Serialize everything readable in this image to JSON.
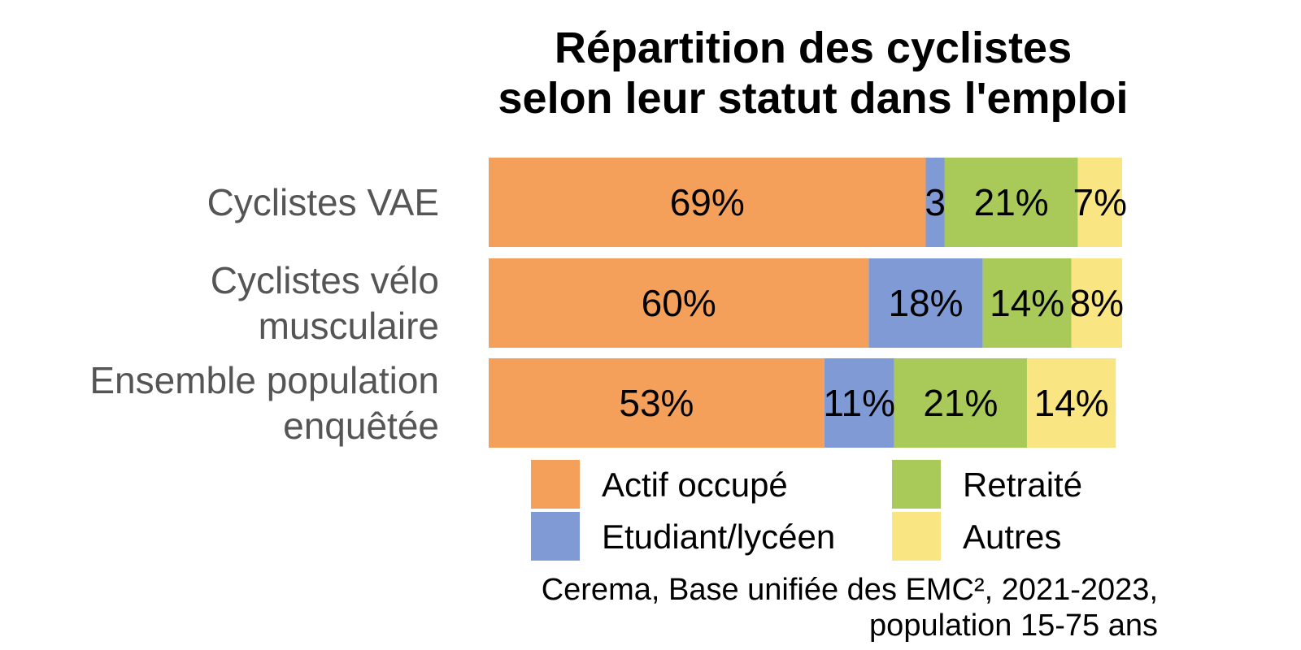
{
  "chart_data": {
    "type": "bar",
    "orientation": "horizontal",
    "stacked": true,
    "title_lines": [
      "Répartition des cyclistes",
      "selon leur statut dans l'emploi"
    ],
    "categories": [
      [
        "Cyclistes VAE"
      ],
      [
        "Cyclistes vélo",
        "musculaire"
      ],
      [
        "Ensemble population",
        "enquêtée"
      ]
    ],
    "series": [
      {
        "name": "Actif occupé",
        "color": "#F4A05A",
        "values": [
          69,
          60,
          53
        ],
        "labels": [
          "69%",
          "60%",
          "53%"
        ]
      },
      {
        "name": "Etudiant/lycéen",
        "color": "#7F9AD4",
        "values": [
          3,
          18,
          11
        ],
        "labels": [
          "3",
          "18%",
          "11%"
        ]
      },
      {
        "name": "Retraité",
        "color": "#A9CA58",
        "values": [
          21,
          14,
          21
        ],
        "labels": [
          "21%",
          "14%",
          "21%"
        ]
      },
      {
        "name": "Autres",
        "color": "#F9E683",
        "values": [
          7,
          8,
          14
        ],
        "labels": [
          "7%",
          "8%",
          "14%"
        ]
      }
    ],
    "xlim": [
      0,
      100
    ],
    "grid": false,
    "legend_position": "bottom",
    "source_lines": [
      "Cerema, Base unifiée des EMC², 2021-2023,",
      "population 15-75 ans"
    ]
  }
}
